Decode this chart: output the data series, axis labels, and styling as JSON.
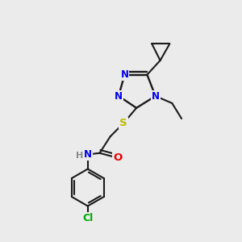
{
  "background_color": "#ebebeb",
  "bond_color": "#1a1a1a",
  "atom_colors": {
    "N": "#0000ee",
    "S": "#bbbb00",
    "O": "#ee0000",
    "Cl": "#00aa00",
    "H": "#888888",
    "C": "#1a1a1a"
  },
  "figsize": [
    3.0,
    3.0
  ],
  "dpi": 100
}
